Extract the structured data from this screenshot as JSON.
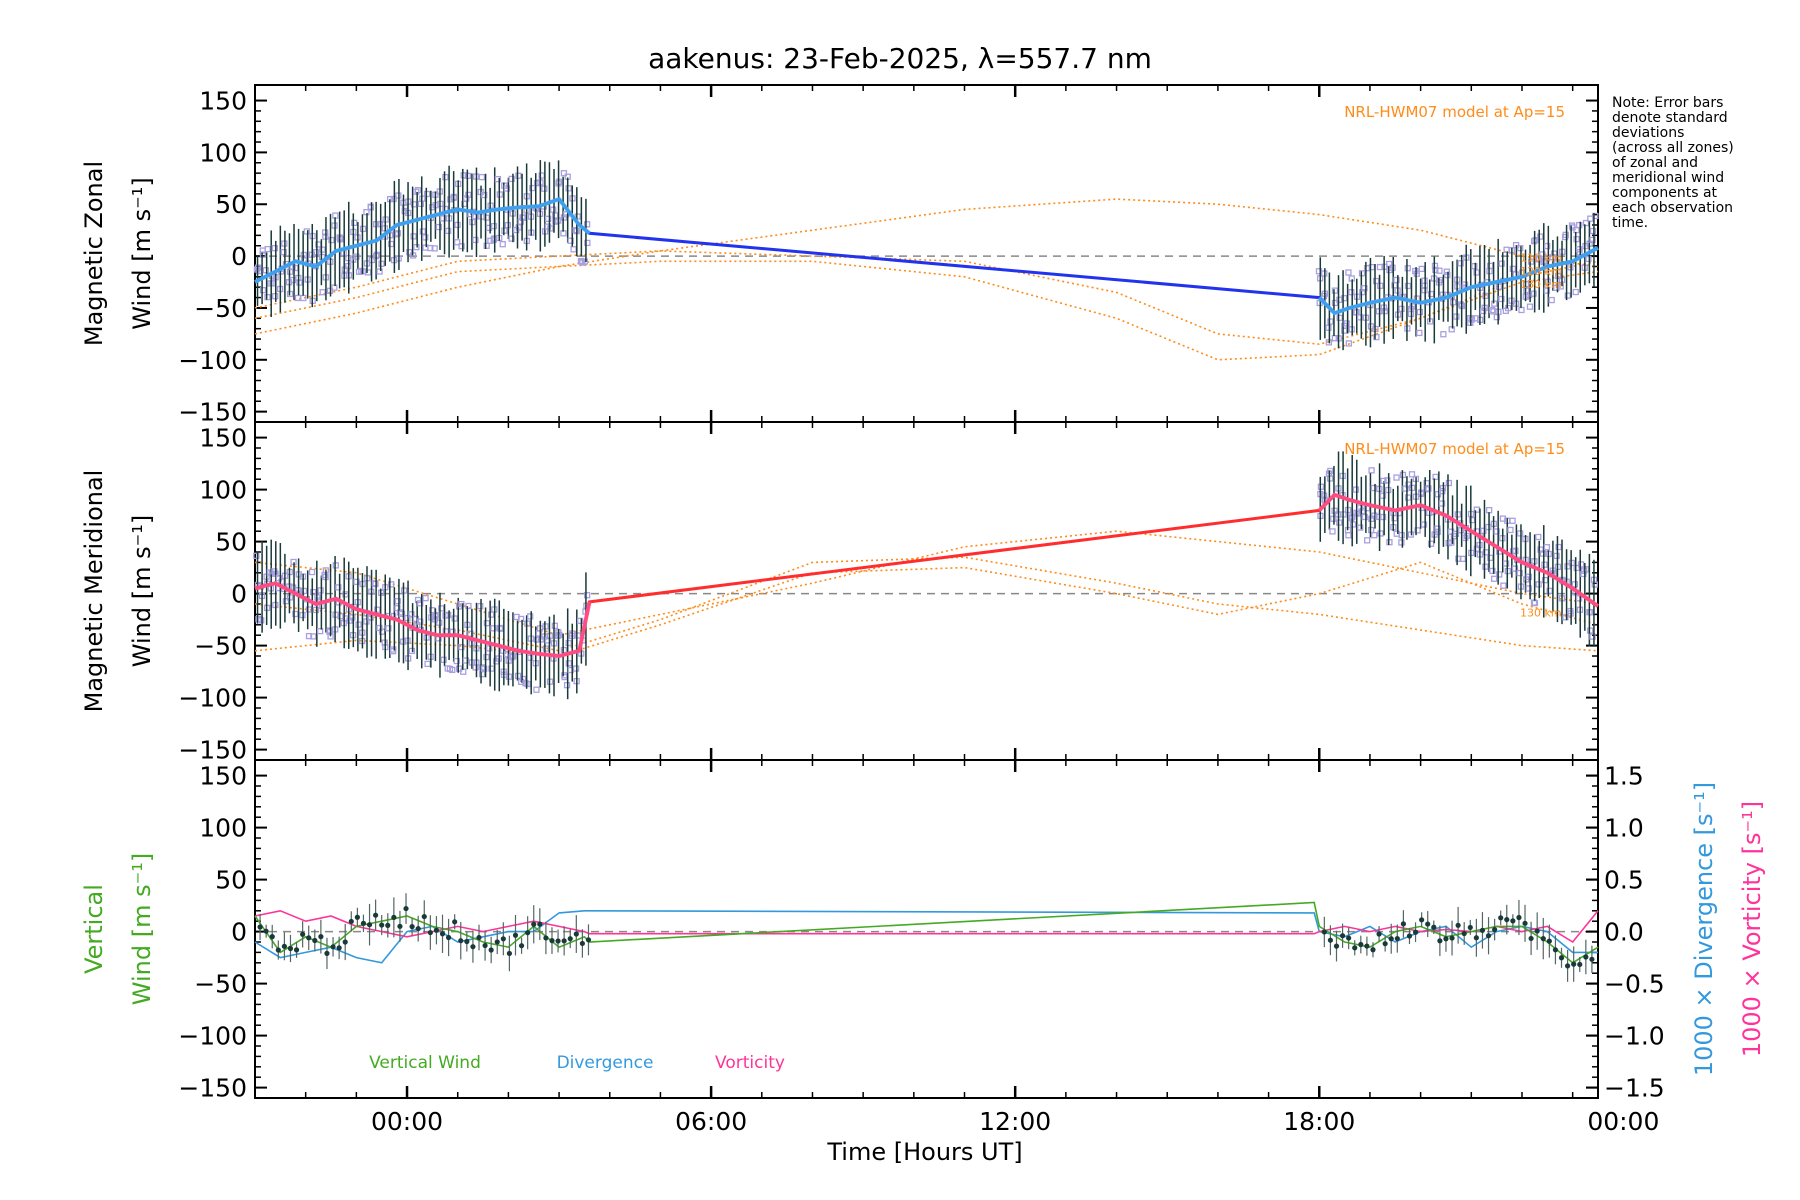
{
  "chart_data": {
    "title": "aakenus: 23-Feb-2025, λ=557.7 nm",
    "x_axis": {
      "label": "Time [Hours UT]",
      "range_hours": [
        -3,
        23.5
      ],
      "tick_labels": [
        "00:00",
        "06:00",
        "12:00",
        "18:00",
        "00:00"
      ],
      "tick_hours": [
        0,
        6,
        12,
        18,
        24
      ]
    },
    "note": [
      "Note: Error bars",
      "denote standard",
      "deviations",
      "(across all zones)",
      "of zonal and",
      "meridional wind",
      "components at",
      "each observation",
      "time."
    ],
    "colors": {
      "zonal": "#2233ee",
      "zonal_mean": "#44aaee",
      "meridional": "#ff2d2d",
      "meridional_mean": "#ff4f8a",
      "model": "#ff8c1a",
      "scatter": "#a9a0e0",
      "vertical": "#44aa22",
      "divergence": "#3399dd",
      "vorticity": "#ff3399",
      "errorbar": "#1a3a3a",
      "zero_line": "#888888"
    },
    "panels": [
      {
        "id": "zonal",
        "type": "line",
        "ylabel": [
          "Magnetic Zonal",
          "Wind [m s⁻¹]"
        ],
        "ylim": [
          -160,
          165
        ],
        "yticks": [
          150,
          100,
          50,
          0,
          -50,
          -100,
          -150
        ],
        "model_label": "NRL-HWM07 model at Ap=15",
        "model_alt_labels": [
          "110 km",
          "120 km",
          "130 km"
        ],
        "series": [
          {
            "name": "Zonal wind",
            "x": [
              -3.0,
              -2.6,
              -2.2,
              -1.8,
              -1.4,
              -1.0,
              -0.6,
              -0.2,
              0.2,
              0.6,
              1.0,
              1.4,
              1.8,
              2.2,
              2.6,
              3.0,
              3.4,
              3.6,
              18.0,
              18.3,
              18.6,
              19.0,
              19.5,
              20.0,
              20.5,
              21.0,
              21.5,
              22.0,
              22.5,
              23.0,
              23.5
            ],
            "y": [
              -25,
              -15,
              -5,
              -10,
              5,
              10,
              15,
              30,
              35,
              40,
              45,
              42,
              45,
              47,
              48,
              55,
              30,
              22,
              -40,
              -55,
              -50,
              -45,
              -40,
              -45,
              -40,
              -30,
              -25,
              -20,
              -10,
              -5,
              8
            ]
          },
          {
            "name": "Model 110 km",
            "x": [
              -3,
              -1,
              1,
              3,
              5,
              8,
              11,
              14,
              16,
              18,
              20,
              22,
              23.5
            ],
            "y": [
              -75,
              -55,
              -30,
              -10,
              5,
              25,
              45,
              55,
              50,
              40,
              25,
              0,
              -10
            ]
          },
          {
            "name": "Model 120 km",
            "x": [
              -3,
              -1,
              1,
              3,
              5,
              8,
              11,
              14,
              16,
              18,
              20,
              22,
              23.5
            ],
            "y": [
              -60,
              -40,
              -15,
              -10,
              -5,
              -5,
              -20,
              -60,
              -100,
              -95,
              -60,
              -20,
              -5
            ]
          },
          {
            "name": "Model 130 km",
            "x": [
              -3,
              -1,
              1,
              3,
              5,
              8,
              11,
              14,
              16,
              18,
              20,
              22,
              23.5
            ],
            "y": [
              -50,
              -30,
              -5,
              0,
              5,
              0,
              -5,
              -35,
              -75,
              -85,
              -60,
              -25,
              -15
            ]
          }
        ]
      },
      {
        "id": "meridional",
        "type": "line",
        "ylabel": [
          "Magnetic Meridional",
          "Wind [m s⁻¹]"
        ],
        "ylim": [
          -160,
          165
        ],
        "yticks": [
          150,
          100,
          50,
          0,
          -50,
          -100,
          -150
        ],
        "model_label": "NRL-HWM07 model at Ap=15",
        "model_alt_labels": [
          "130 km"
        ],
        "series": [
          {
            "name": "Meridional wind",
            "x": [
              -3.0,
              -2.6,
              -2.2,
              -1.8,
              -1.4,
              -1.0,
              -0.6,
              -0.2,
              0.2,
              0.6,
              1.0,
              1.4,
              1.8,
              2.2,
              2.6,
              3.0,
              3.4,
              3.6,
              18.0,
              18.3,
              18.6,
              19.0,
              19.5,
              20.0,
              20.5,
              21.0,
              21.5,
              22.0,
              22.5,
              23.0,
              23.5
            ],
            "y": [
              5,
              10,
              0,
              -10,
              -5,
              -15,
              -20,
              -25,
              -35,
              -40,
              -40,
              -45,
              -50,
              -55,
              -58,
              -60,
              -55,
              -8,
              80,
              95,
              90,
              85,
              80,
              85,
              75,
              60,
              45,
              30,
              20,
              5,
              -12
            ]
          },
          {
            "name": "Model 110 km",
            "x": [
              -3,
              -1,
              1,
              3,
              5,
              8,
              11,
              14,
              16,
              18,
              20,
              22,
              23.5
            ],
            "y": [
              30,
              20,
              -10,
              -40,
              -20,
              10,
              45,
              60,
              50,
              40,
              20,
              0,
              -10
            ]
          },
          {
            "name": "Model 120 km",
            "x": [
              -3,
              -1,
              1,
              3,
              5,
              8,
              11,
              14,
              16,
              18,
              20,
              22,
              23.5
            ],
            "y": [
              -10,
              -20,
              -35,
              -55,
              -25,
              30,
              35,
              10,
              -10,
              -20,
              -35,
              -50,
              -55
            ]
          },
          {
            "name": "Model 130 km",
            "x": [
              -3,
              -1,
              1,
              3,
              5,
              8,
              11,
              14,
              16,
              18,
              20,
              22,
              23.5
            ],
            "y": [
              -55,
              -45,
              -50,
              -60,
              -30,
              20,
              25,
              0,
              -20,
              0,
              30,
              -10,
              -30
            ]
          }
        ]
      },
      {
        "id": "vertical",
        "type": "line",
        "ylabel": [
          "Vertical",
          "Wind [m s⁻¹]"
        ],
        "ylim": [
          -160,
          165
        ],
        "yticks": [
          150,
          100,
          50,
          0,
          -50,
          -100,
          -150
        ],
        "right_axis": {
          "ylabel_div": "1000 × Divergence [s⁻¹]",
          "ylabel_vort": "1000 × Vorticity [s⁻¹]",
          "ylim": [
            -1.6,
            1.65
          ],
          "yticks": [
            1.5,
            1.0,
            0.5,
            0.0,
            -0.5,
            -1.0,
            -1.5
          ],
          "ytick_labels": [
            "1.5",
            "1.0",
            "0.5",
            "0.0",
            "−0.5",
            "−1.0",
            "−1.5"
          ]
        },
        "legend": [
          "Vertical Wind",
          "Divergence",
          "Vorticity"
        ],
        "series": [
          {
            "name": "Vertical Wind",
            "x": [
              -3.0,
              -2.5,
              -2.0,
              -1.5,
              -1.0,
              -0.5,
              0.0,
              0.5,
              1.0,
              1.5,
              2.0,
              2.5,
              3.0,
              3.5,
              3.6,
              17.9,
              18.0,
              18.5,
              19.0,
              19.5,
              20.0,
              20.5,
              21.0,
              21.5,
              22.0,
              22.5,
              23.0,
              23.5
            ],
            "y": [
              15,
              -20,
              -5,
              -15,
              5,
              10,
              15,
              5,
              0,
              -10,
              -15,
              5,
              -15,
              -5,
              -10,
              28,
              5,
              -10,
              -15,
              0,
              5,
              -5,
              0,
              5,
              5,
              -10,
              -30,
              -15
            ]
          },
          {
            "name": "Divergence",
            "x": [
              -3.0,
              -2.5,
              -2.0,
              -1.5,
              -1.0,
              -0.5,
              0.0,
              0.5,
              1.0,
              1.5,
              2.0,
              2.5,
              3.0,
              3.5,
              3.6,
              17.9,
              18.0,
              18.5,
              19.0,
              19.5,
              20.0,
              20.5,
              21.0,
              21.5,
              22.0,
              22.5,
              23.0,
              23.5
            ],
            "y": [
              -0.1,
              -0.25,
              -0.2,
              -0.15,
              -0.25,
              -0.3,
              0.0,
              0.05,
              -0.1,
              -0.05,
              0.0,
              0.0,
              0.18,
              0.2,
              0.2,
              0.18,
              0.0,
              -0.05,
              0.05,
              -0.1,
              0.0,
              0.05,
              -0.15,
              0.0,
              0.05,
              0.0,
              -0.2,
              -0.2
            ]
          },
          {
            "name": "Vorticity",
            "x": [
              -3.0,
              -2.5,
              -2.0,
              -1.5,
              -1.0,
              -0.5,
              0.0,
              0.5,
              1.0,
              1.5,
              2.0,
              2.5,
              3.0,
              3.5,
              3.6,
              17.9,
              18.0,
              18.5,
              19.0,
              19.5,
              20.0,
              20.5,
              21.0,
              21.5,
              22.0,
              22.5,
              23.0,
              23.5
            ],
            "y": [
              0.15,
              0.2,
              0.1,
              0.15,
              0.05,
              0.0,
              -0.05,
              0.0,
              0.05,
              0.0,
              0.05,
              0.1,
              0.05,
              0.0,
              -0.02,
              -0.02,
              0.0,
              0.05,
              0.0,
              0.05,
              0.0,
              0.02,
              0.0,
              0.05,
              0.0,
              0.05,
              -0.1,
              0.2
            ]
          }
        ]
      }
    ]
  }
}
